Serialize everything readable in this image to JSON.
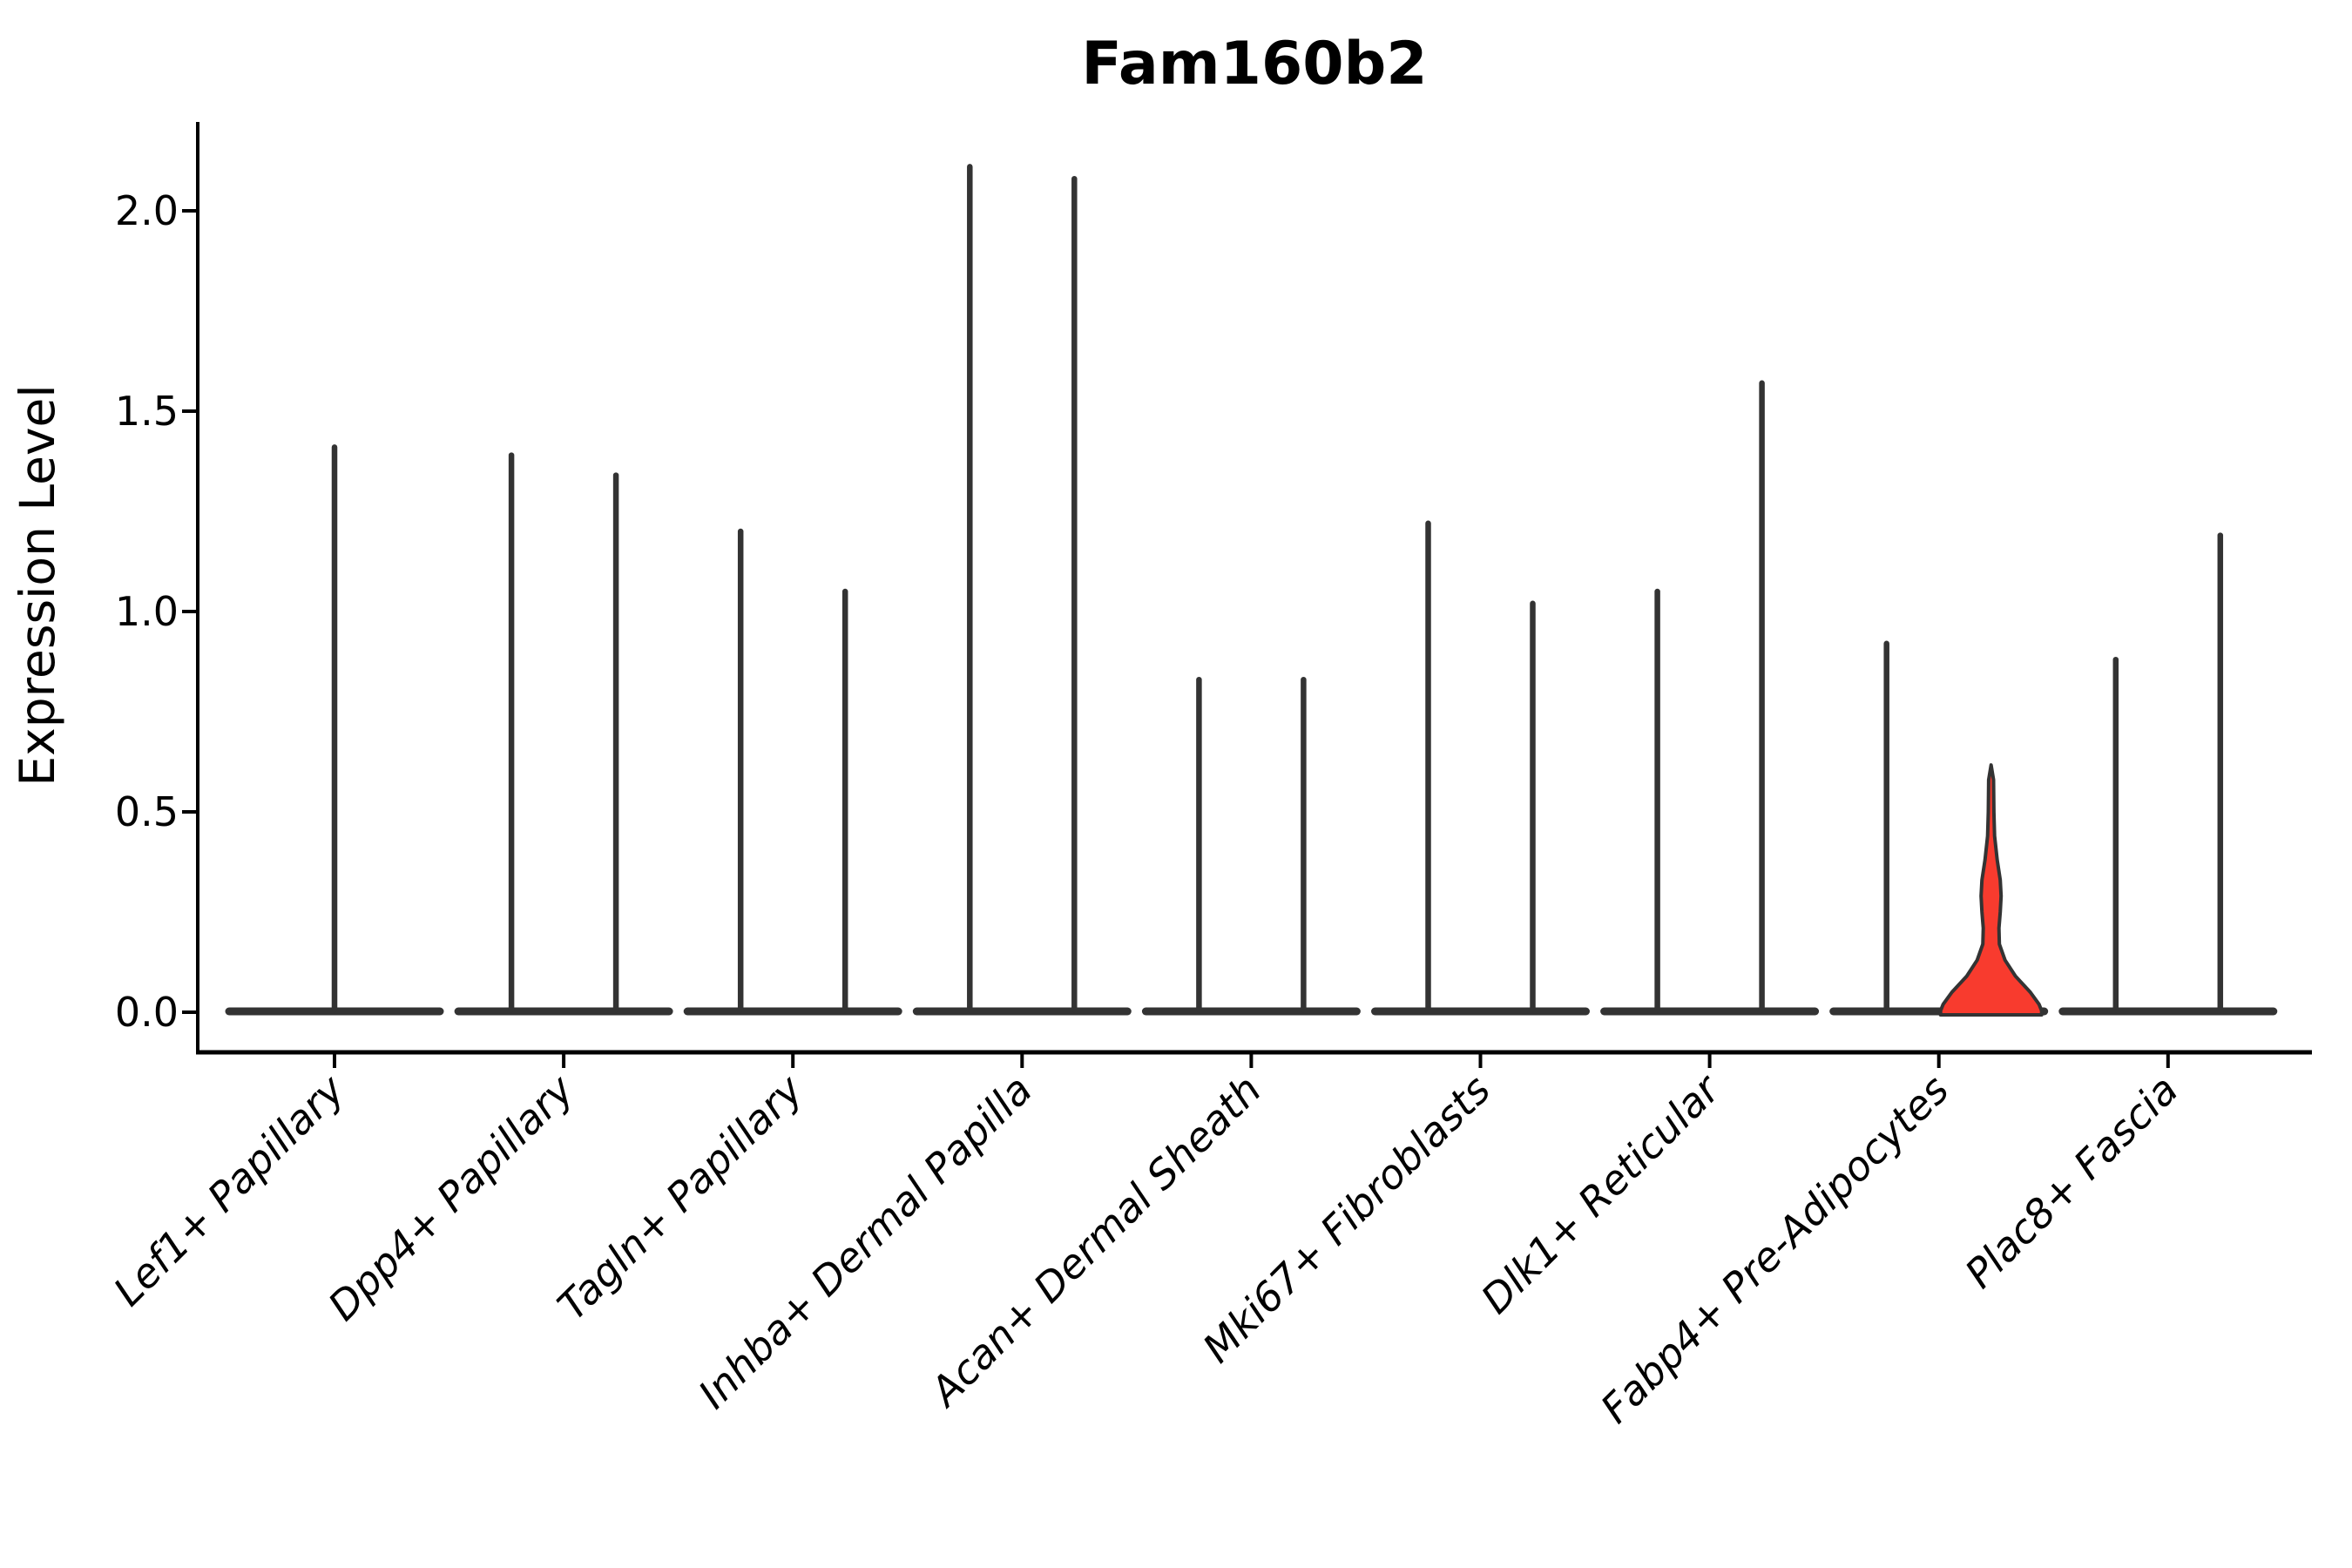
{
  "title": "Fam160b2",
  "ylabel": "Expression Level",
  "colors": {
    "violin_line": "#333333",
    "axis_line": "#000000",
    "highlight_fill": "#F83B2E",
    "background": "#FFFFFF"
  },
  "chart_data": {
    "type": "violin",
    "title": "Fam160b2",
    "xlabel": "",
    "ylabel": "Expression Level",
    "ylim": [
      -0.1,
      2.22
    ],
    "yticks": [
      0.0,
      0.5,
      1.0,
      1.5,
      2.0
    ],
    "ytick_labels": [
      "0.0",
      "0.5",
      "1.0",
      "1.5",
      "2.0"
    ],
    "grid": false,
    "legend": "none",
    "note": "Expression mostly zero in every cluster: each violin collapses to a flat bar at 0 with a thin spike up to its maximum expression value. The second violin of Fabp4+ Pre-Adipocytes is highlighted in red with visible density width.",
    "categories": [
      {
        "label": "Lef1+ Papillary",
        "violins": [
          {
            "max": 1.41
          }
        ]
      },
      {
        "label": "Dpp4+ Papillary",
        "violins": [
          {
            "max": 1.39
          },
          {
            "max": 1.34
          }
        ]
      },
      {
        "label": "Tagln+ Papillary",
        "violins": [
          {
            "max": 1.2
          },
          {
            "max": 1.05
          }
        ]
      },
      {
        "label": "Inhba+ Dermal Papilla",
        "violins": [
          {
            "max": 2.11
          },
          {
            "max": 2.08
          }
        ]
      },
      {
        "label": "Acan+ Dermal Sheath",
        "violins": [
          {
            "max": 0.83
          },
          {
            "max": 0.83
          }
        ]
      },
      {
        "label": "Mki67+ Fibroblasts",
        "violins": [
          {
            "max": 1.22
          },
          {
            "max": 1.02
          }
        ]
      },
      {
        "label": "Dlk1+ Reticular",
        "violins": [
          {
            "max": 1.05
          },
          {
            "max": 1.57
          }
        ]
      },
      {
        "label": "Fabp4+ Pre-Adipocytes",
        "violins": [
          {
            "max": 0.92
          },
          {
            "max": 0.62,
            "highlighted": true,
            "profile": [
              [
                0.617,
                0
              ],
              [
                0.58,
                2.8
              ],
              [
                0.5,
                3.2
              ],
              [
                0.44,
                4.0
              ],
              [
                0.38,
                7.0
              ],
              [
                0.33,
                10.5
              ],
              [
                0.29,
                11.5
              ],
              [
                0.25,
                10.5
              ],
              [
                0.21,
                9.0
              ],
              [
                0.17,
                9.5
              ],
              [
                0.13,
                16
              ],
              [
                0.09,
                28
              ],
              [
                0.05,
                45
              ],
              [
                0.02,
                55
              ],
              [
                0.004,
                58
              ]
            ]
          }
        ]
      },
      {
        "label": "Plac8+ Fascia",
        "violins": [
          {
            "max": 0.88
          },
          {
            "max": 1.19
          }
        ]
      }
    ]
  }
}
